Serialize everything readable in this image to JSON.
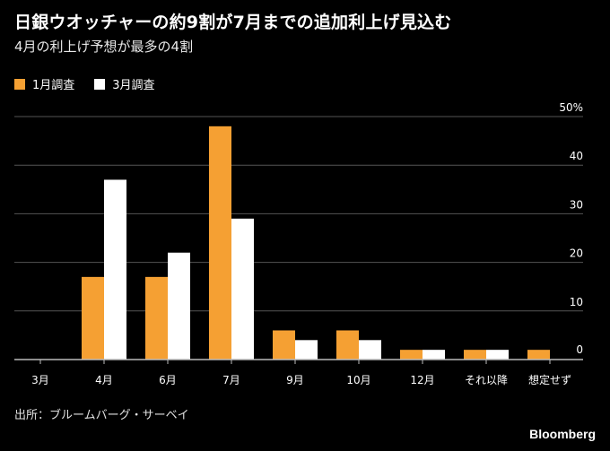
{
  "title": "日銀ウオッチャーの約9割が7月までの追加利上げ見込む",
  "subtitle": "4月の利上げ予想が最多の4割",
  "source": "出所：ブルームバーグ・サーベイ",
  "brand": "Bloomberg",
  "colors": {
    "series1": "#f5a033",
    "series2": "#ffffff",
    "grid": "#555555",
    "axis": "#bbbbbb"
  },
  "chart_data": {
    "type": "bar",
    "categories": [
      "3月",
      "4月",
      "6月",
      "7月",
      "9月",
      "10月",
      "12月",
      "それ以降",
      "想定せず"
    ],
    "series": [
      {
        "name": "1月調査",
        "values": [
          0,
          17,
          17,
          48,
          6,
          6,
          2,
          2,
          2
        ]
      },
      {
        "name": "3月調査",
        "values": [
          0,
          37,
          22,
          29,
          4,
          4,
          2,
          2,
          0
        ]
      }
    ],
    "ylim": [
      0,
      50
    ],
    "yticks": [
      0,
      10,
      20,
      30,
      40,
      50
    ],
    "ytick_labels": [
      "0",
      "10",
      "20",
      "30",
      "40",
      "50%"
    ],
    "xlabel": "",
    "ylabel": "",
    "legend": "top-left",
    "grid": true
  }
}
